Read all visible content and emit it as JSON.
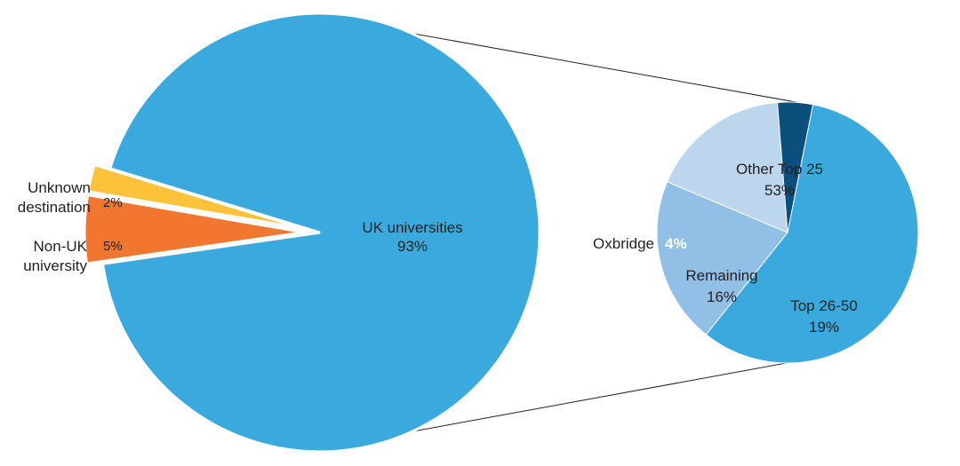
{
  "chart_data": [
    {
      "type": "pie",
      "title": "",
      "slices": [
        {
          "name": "UK universities",
          "value": 93,
          "value_label": "93%",
          "color": "#3aa9de"
        },
        {
          "name": "Non-UK university",
          "value": 5,
          "value_label": "5%",
          "color": "#f1762f"
        },
        {
          "name": "Unknown destination",
          "value": 2,
          "value_label": "2%",
          "color": "#fcc23a"
        }
      ],
      "outside_labels": {
        "unknown_line1": "Unknown",
        "unknown_line2": "destination",
        "nonuk_line1": "Non-UK",
        "nonuk_line2": "university"
      },
      "exploded": [
        "Non-UK university",
        "Unknown destination"
      ]
    },
    {
      "type": "pie",
      "title": "",
      "breakdown_of": "UK universities",
      "slices": [
        {
          "name": "Other Top 25",
          "value": 53,
          "value_label": "53%",
          "color": "#3aa9de"
        },
        {
          "name": "Top 26-50",
          "value": 19,
          "value_label": "19%",
          "color": "#92bfe6"
        },
        {
          "name": "Remaining",
          "value": 16,
          "value_label": "16%",
          "color": "#bcd6ee"
        },
        {
          "name": "Oxbridge",
          "value": 4,
          "value_label": "4%",
          "color": "#0b4f7c"
        }
      ]
    }
  ]
}
